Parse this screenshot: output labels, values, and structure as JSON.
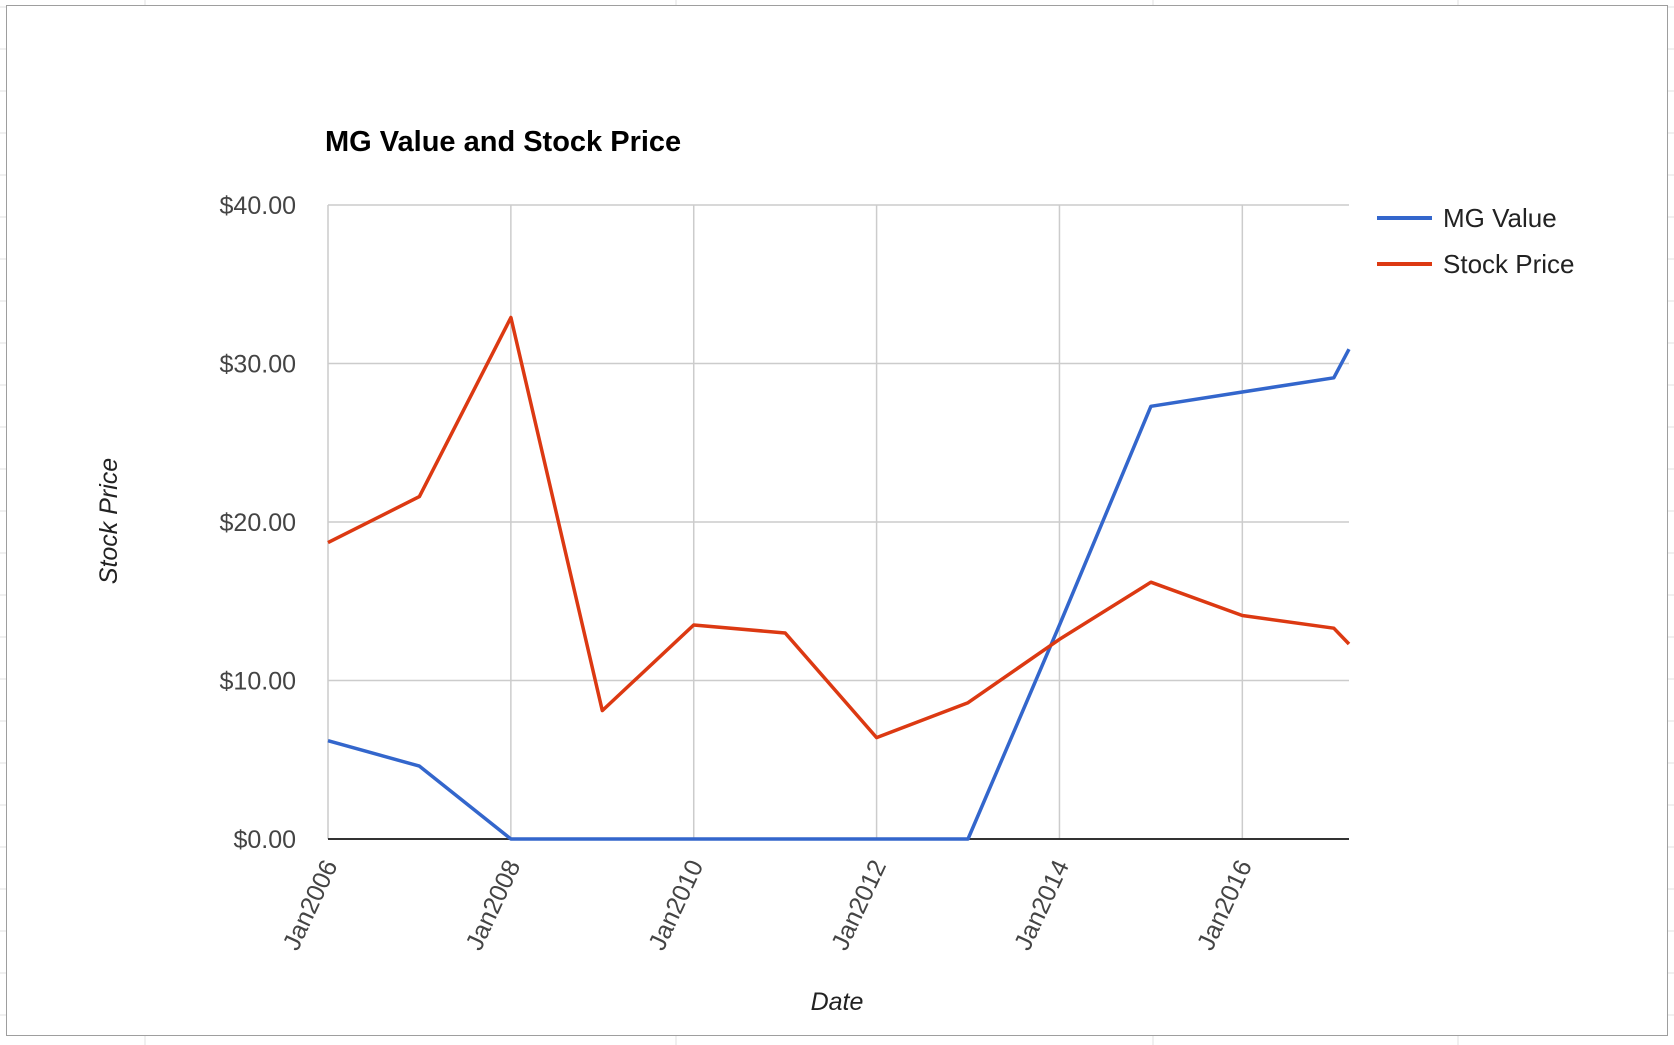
{
  "colors": {
    "mg_value": "#3366cc",
    "stock_price": "#dc3912",
    "gridline": "#cccccc",
    "baseline": "#333333",
    "sheet_grid": "#e2e2e2",
    "frame_border": "#9e9e9e"
  },
  "chart_data": {
    "type": "line",
    "title": "MG Value and Stock Price",
    "xlabel": "Date",
    "ylabel": "Stock Price",
    "x": [
      "2006-01",
      "2007-01",
      "2008-01",
      "2009-01",
      "2010-01",
      "2011-01",
      "2012-01",
      "2013-01",
      "2014-01",
      "2015-01",
      "2016-01",
      "2017-01",
      "2017-03"
    ],
    "x_tick_labels": [
      "Jan2006",
      "Jan2008",
      "Jan2010",
      "Jan2012",
      "Jan2014",
      "Jan2016"
    ],
    "ylim": [
      0,
      40
    ],
    "y_tick_labels": [
      "$0.00",
      "$10.00",
      "$20.00",
      "$30.00",
      "$40.00"
    ],
    "grid": true,
    "legend_position": "right",
    "series": [
      {
        "name": "MG Value",
        "color": "#3366cc",
        "values": [
          6.2,
          4.6,
          0.0,
          0.0,
          0.0,
          0.0,
          0.0,
          0.0,
          13.5,
          27.3,
          28.2,
          29.1,
          30.9
        ]
      },
      {
        "name": "Stock Price",
        "color": "#dc3912",
        "values": [
          18.7,
          21.6,
          32.9,
          8.1,
          13.5,
          13.0,
          6.4,
          8.6,
          12.6,
          16.2,
          14.1,
          13.3,
          12.3
        ]
      }
    ]
  }
}
